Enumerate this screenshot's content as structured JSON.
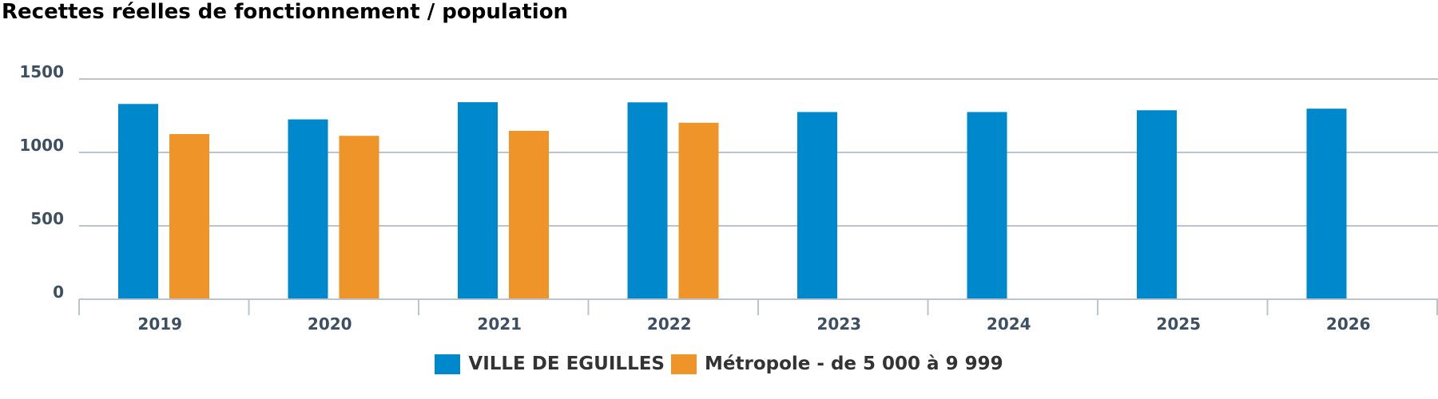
{
  "chart_data": {
    "type": "bar",
    "title": "Recettes réelles de fonctionnement / population",
    "categories": [
      "2019",
      "2020",
      "2021",
      "2022",
      "2023",
      "2024",
      "2025",
      "2026"
    ],
    "series": [
      {
        "name": "VILLE DE EGUILLES",
        "color": "#0088cc",
        "values": [
          1330,
          1225,
          1342,
          1341,
          1275,
          1275,
          1287,
          1298
        ]
      },
      {
        "name": "Métropole - de 5 000 à 9 999",
        "color": "#ef9429",
        "values": [
          1125,
          1113,
          1147,
          1202,
          null,
          null,
          null,
          null
        ]
      }
    ],
    "yticks": [
      0,
      500,
      1000,
      1500
    ],
    "ylim": [
      0,
      1500
    ],
    "xlabel": "",
    "ylabel": "",
    "grid": true,
    "legend_position": "bottom-center"
  }
}
